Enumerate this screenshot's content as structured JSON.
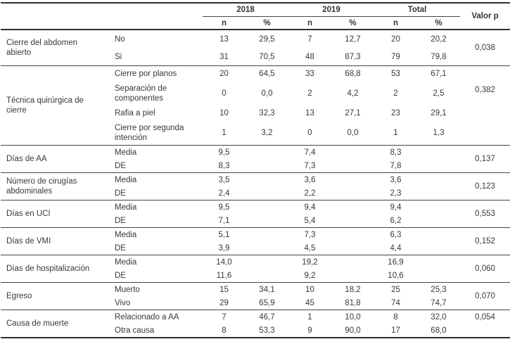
{
  "columns": {
    "groups": [
      {
        "label": "2018",
        "sub": [
          "n",
          "%"
        ]
      },
      {
        "label": "2019",
        "sub": [
          "n",
          "%"
        ]
      },
      {
        "label": "Total",
        "sub": [
          "n",
          "%"
        ]
      }
    ],
    "p_label": "Valor p"
  },
  "sections": [
    {
      "label": "Cierre del abdomen abierto",
      "p": "0,038",
      "p_pos": "middle",
      "rows": [
        {
          "sub": "No",
          "v": [
            "13",
            "29,5",
            "7",
            "12,7",
            "20",
            "20,2"
          ]
        },
        {
          "sub": "Si",
          "v": [
            "31",
            "70,5",
            "48",
            "87,3",
            "79",
            "79,8"
          ]
        }
      ]
    },
    {
      "label": "Técnica quirúrgica de cierre",
      "p": "0,382",
      "p_pos": "upper",
      "rows": [
        {
          "sub": "Cierre por planos",
          "v": [
            "20",
            "64,5",
            "33",
            "68,8",
            "53",
            "67,1"
          ]
        },
        {
          "sub": "Separación de componentes",
          "v": [
            "0",
            "0,0",
            "2",
            "4,2",
            "2",
            "2,5"
          ]
        },
        {
          "sub": "Rafia a piel",
          "v": [
            "10",
            "32,3",
            "13",
            "27,1",
            "23",
            "29,1"
          ]
        },
        {
          "sub": "Cierre por segunda intención",
          "v": [
            "1",
            "3,2",
            "0",
            "0,0",
            "1",
            "1,3"
          ]
        }
      ]
    },
    {
      "label": "Días de AA",
      "p": "0,137",
      "p_pos": "middle",
      "rows": [
        {
          "sub": "Media",
          "v": [
            "9,5",
            "",
            "7,4",
            "",
            "8,3",
            ""
          ]
        },
        {
          "sub": "DE",
          "v": [
            "8,3",
            "",
            "7,3",
            "",
            "7,8",
            ""
          ]
        }
      ]
    },
    {
      "label": "Número de cirugías abdominales",
      "p": "0,123",
      "p_pos": "middle",
      "rows": [
        {
          "sub": "Media",
          "v": [
            "3,5",
            "",
            "3,6",
            "",
            "3,6",
            ""
          ]
        },
        {
          "sub": "DE",
          "v": [
            "2,4",
            "",
            "2,2",
            "",
            "2,3",
            ""
          ]
        }
      ]
    },
    {
      "label": "Días en UCI",
      "p": "0,553",
      "p_pos": "middle",
      "rows": [
        {
          "sub": "Media",
          "v": [
            "9,5",
            "",
            "9,4",
            "",
            "9,4",
            ""
          ]
        },
        {
          "sub": "DE",
          "v": [
            "7,1",
            "",
            "5,4",
            "",
            "6,2",
            ""
          ]
        }
      ]
    },
    {
      "label": "Días de VMI",
      "p": "0,152",
      "p_pos": "middle",
      "rows": [
        {
          "sub": "Media",
          "v": [
            "5,1",
            "",
            "7,3",
            "",
            "6,3",
            ""
          ]
        },
        {
          "sub": "DE",
          "v": [
            "3,9",
            "",
            "4,5",
            "",
            "4,4",
            ""
          ]
        }
      ]
    },
    {
      "label": "Días de hospitalización",
      "p": "0,060",
      "p_pos": "middle",
      "rows": [
        {
          "sub": "Media",
          "v": [
            "14,0",
            "",
            "19,2",
            "",
            "16,9",
            ""
          ]
        },
        {
          "sub": "DE",
          "v": [
            "11,6",
            "",
            "9,2",
            "",
            "10,6",
            ""
          ]
        }
      ]
    },
    {
      "label": "Egreso",
      "p": "0,070",
      "p_pos": "middle",
      "rows": [
        {
          "sub": "Muerto",
          "v": [
            "15",
            "34,1",
            "10",
            "18,2",
            "25",
            "25,3"
          ]
        },
        {
          "sub": "Vivo",
          "v": [
            "29",
            "65,9",
            "45",
            "81,8",
            "74",
            "74,7"
          ]
        }
      ]
    },
    {
      "label": "Causa de muerte",
      "p": "0,054",
      "p_pos": "first",
      "rows": [
        {
          "sub": "Relacionado a AA",
          "v": [
            "7",
            "46,7",
            "1",
            "10,0",
            "8",
            "32,0"
          ]
        },
        {
          "sub": "Otra causa",
          "v": [
            "8",
            "53,3",
            "9",
            "90,0",
            "17",
            "68,0"
          ]
        }
      ]
    }
  ]
}
